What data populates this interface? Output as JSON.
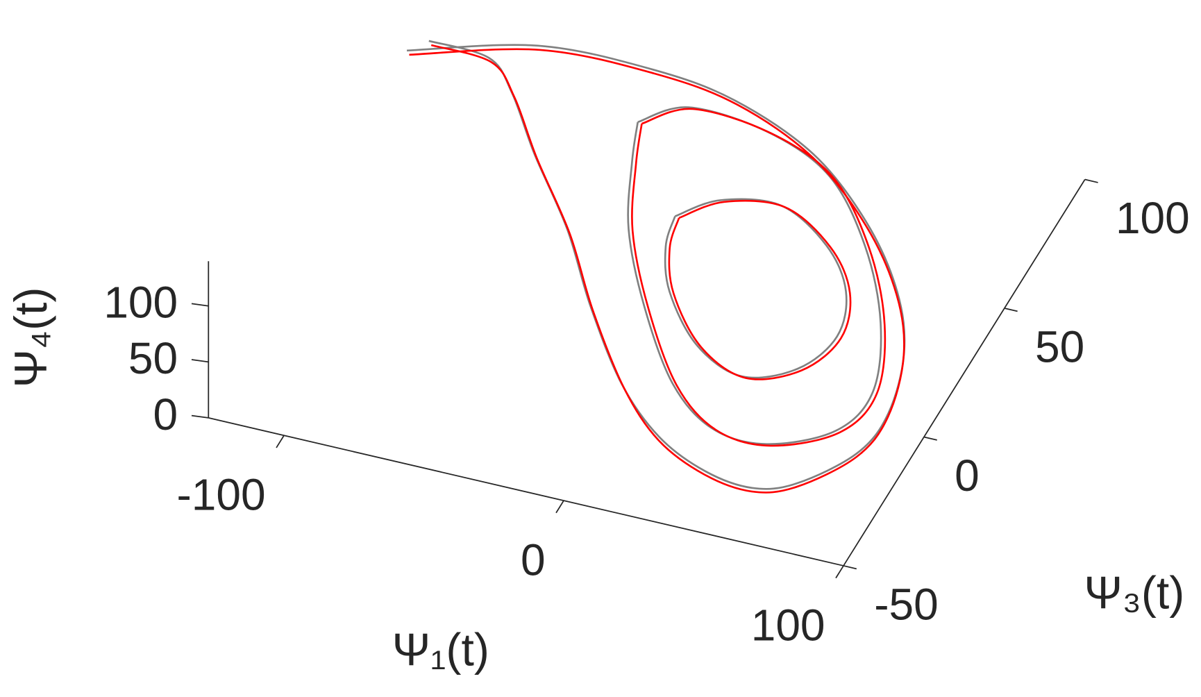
{
  "chart_data": {
    "type": "line3d",
    "xlabel": "Ψ₁(t)",
    "ylabel": "Ψ₃(t)",
    "zlabel": "Ψ₄(t)",
    "xlim": [
      -127,
      100
    ],
    "ylim": [
      -50,
      100
    ],
    "zlim": [
      0,
      140
    ],
    "xticks": [
      -100,
      0,
      100
    ],
    "yticks": [
      -50,
      0,
      50,
      100
    ],
    "zticks": [
      0,
      50,
      100
    ],
    "series": [
      {
        "color": "#808080",
        "x": [
          -128,
          -88,
          -48,
          -16,
          19,
          49,
          72,
          86,
          93,
          91,
          78,
          65,
          47,
          26,
          4,
          -21,
          -43,
          -68,
          -87,
          -101,
          -123
        ],
        "y": [
          75,
          87,
          88,
          84,
          72,
          53,
          32,
          12,
          -10,
          -26,
          -41,
          -46,
          -44,
          -36,
          -21,
          3,
          27,
          50,
          69,
          79,
          80
        ],
        "z": [
          40,
          40,
          40,
          40,
          40,
          40,
          40,
          40,
          40,
          40,
          40,
          40,
          40,
          40,
          40,
          40,
          40,
          40,
          40,
          40,
          40
        ]
      },
      {
        "color": "#808080",
        "x": [
          -42,
          -29,
          0,
          28,
          53,
          73,
          84,
          80,
          61,
          41,
          20,
          -4,
          -24,
          -36,
          -42
        ],
        "y": [
          69,
          78,
          76,
          66,
          45,
          20,
          -4,
          -20,
          -30,
          -29,
          -17,
          7,
          32,
          55,
          69
        ],
        "z": [
          40,
          40,
          40,
          40,
          40,
          40,
          40,
          40,
          40,
          40,
          40,
          40,
          40,
          40,
          40
        ]
      },
      {
        "color": "#808080",
        "x": [
          -12,
          -1,
          19,
          41,
          56,
          62,
          56,
          40,
          20,
          1,
          -9,
          -12
        ],
        "y": [
          40,
          49,
          52,
          42,
          28,
          12,
          -2,
          -9,
          -2,
          14,
          29,
          40
        ],
        "z": [
          40,
          40,
          40,
          40,
          40,
          40,
          40,
          40,
          40,
          40,
          40,
          40
        ]
      },
      {
        "color": "#ff0000",
        "x": [
          -126,
          -86,
          -46,
          -14,
          20,
          50,
          73,
          87,
          94,
          92,
          79,
          66,
          48,
          27,
          6,
          -19,
          -41,
          -66,
          -85,
          -99,
          -121
        ],
        "y": [
          73,
          85,
          86,
          82,
          70,
          51,
          30,
          10,
          -12,
          -28,
          -43,
          -48,
          -46,
          -38,
          -23,
          1,
          25,
          48,
          67,
          77,
          78
        ],
        "z": [
          42,
          42,
          42,
          42,
          42,
          42,
          42,
          42,
          42,
          42,
          42,
          42,
          42,
          42,
          42,
          42,
          42,
          42,
          42,
          42,
          42
        ]
      },
      {
        "color": "#ff0000",
        "x": [
          -40,
          -27,
          2,
          30,
          55,
          75,
          86,
          82,
          63,
          43,
          22,
          -2,
          -22,
          -34,
          -40
        ],
        "y": [
          68,
          77,
          75,
          65,
          44,
          19,
          -5,
          -21,
          -31,
          -30,
          -18,
          6,
          31,
          54,
          68
        ],
        "z": [
          42,
          42,
          42,
          42,
          42,
          42,
          42,
          42,
          42,
          42,
          42,
          42,
          42,
          42,
          42
        ]
      },
      {
        "color": "#ff0000",
        "x": [
          -10,
          1,
          21,
          43,
          58,
          64,
          58,
          42,
          22,
          3,
          -7,
          -10
        ],
        "y": [
          39,
          48,
          51,
          41,
          27,
          11,
          -3,
          -10,
          -3,
          13,
          28,
          39
        ],
        "z": [
          42,
          42,
          42,
          42,
          42,
          42,
          42,
          42,
          42,
          42,
          42,
          42
        ]
      }
    ]
  }
}
